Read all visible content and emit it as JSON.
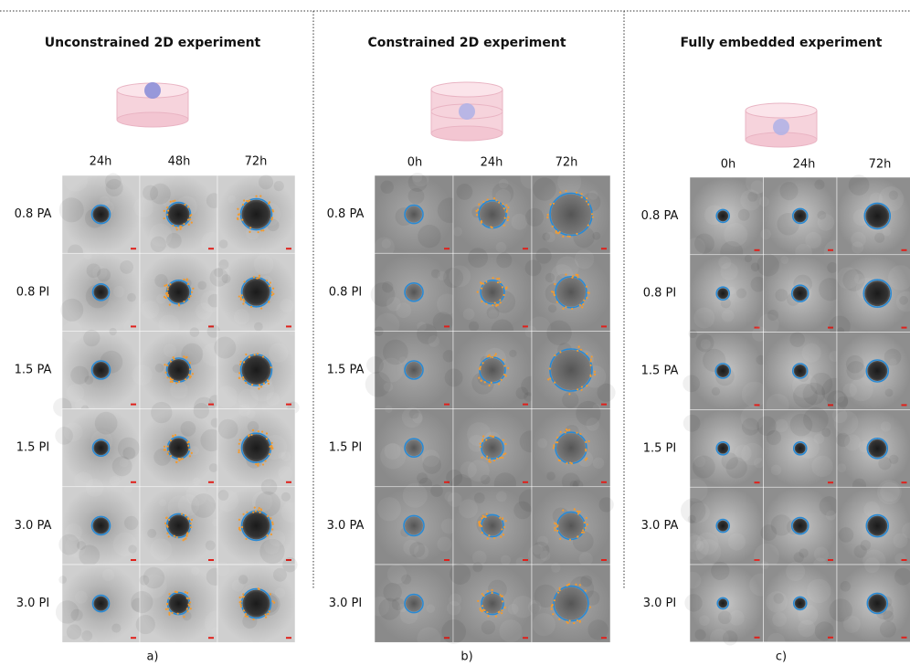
{
  "panels": [
    {
      "title": "Unconstrained 2D experiment",
      "times": [
        "24h",
        "48h",
        "72h"
      ],
      "rows": [
        "0.8 PA",
        "0.8 PI",
        "1.5 PA",
        "1.5 PI",
        "3.0 PA",
        "3.0 PI"
      ],
      "caption": "a)"
    },
    {
      "title": "Constrained 2D experiment",
      "times": [
        "0h",
        "24h",
        "72h"
      ],
      "rows": [
        "0.8 PA",
        "0.8 PI",
        "1.5 PA",
        "1.5 PI",
        "3.0 PA",
        "3.0 PI"
      ],
      "caption": "b)"
    },
    {
      "title": "Fully embedded experiment",
      "times": [
        "0h",
        "24h",
        "72h"
      ],
      "rows": [
        "0.8 PA",
        "0.8 PI",
        "1.5 PA",
        "1.5 PI",
        "3.0 PA",
        "3.0 PI"
      ],
      "caption": "c)"
    }
  ]
}
